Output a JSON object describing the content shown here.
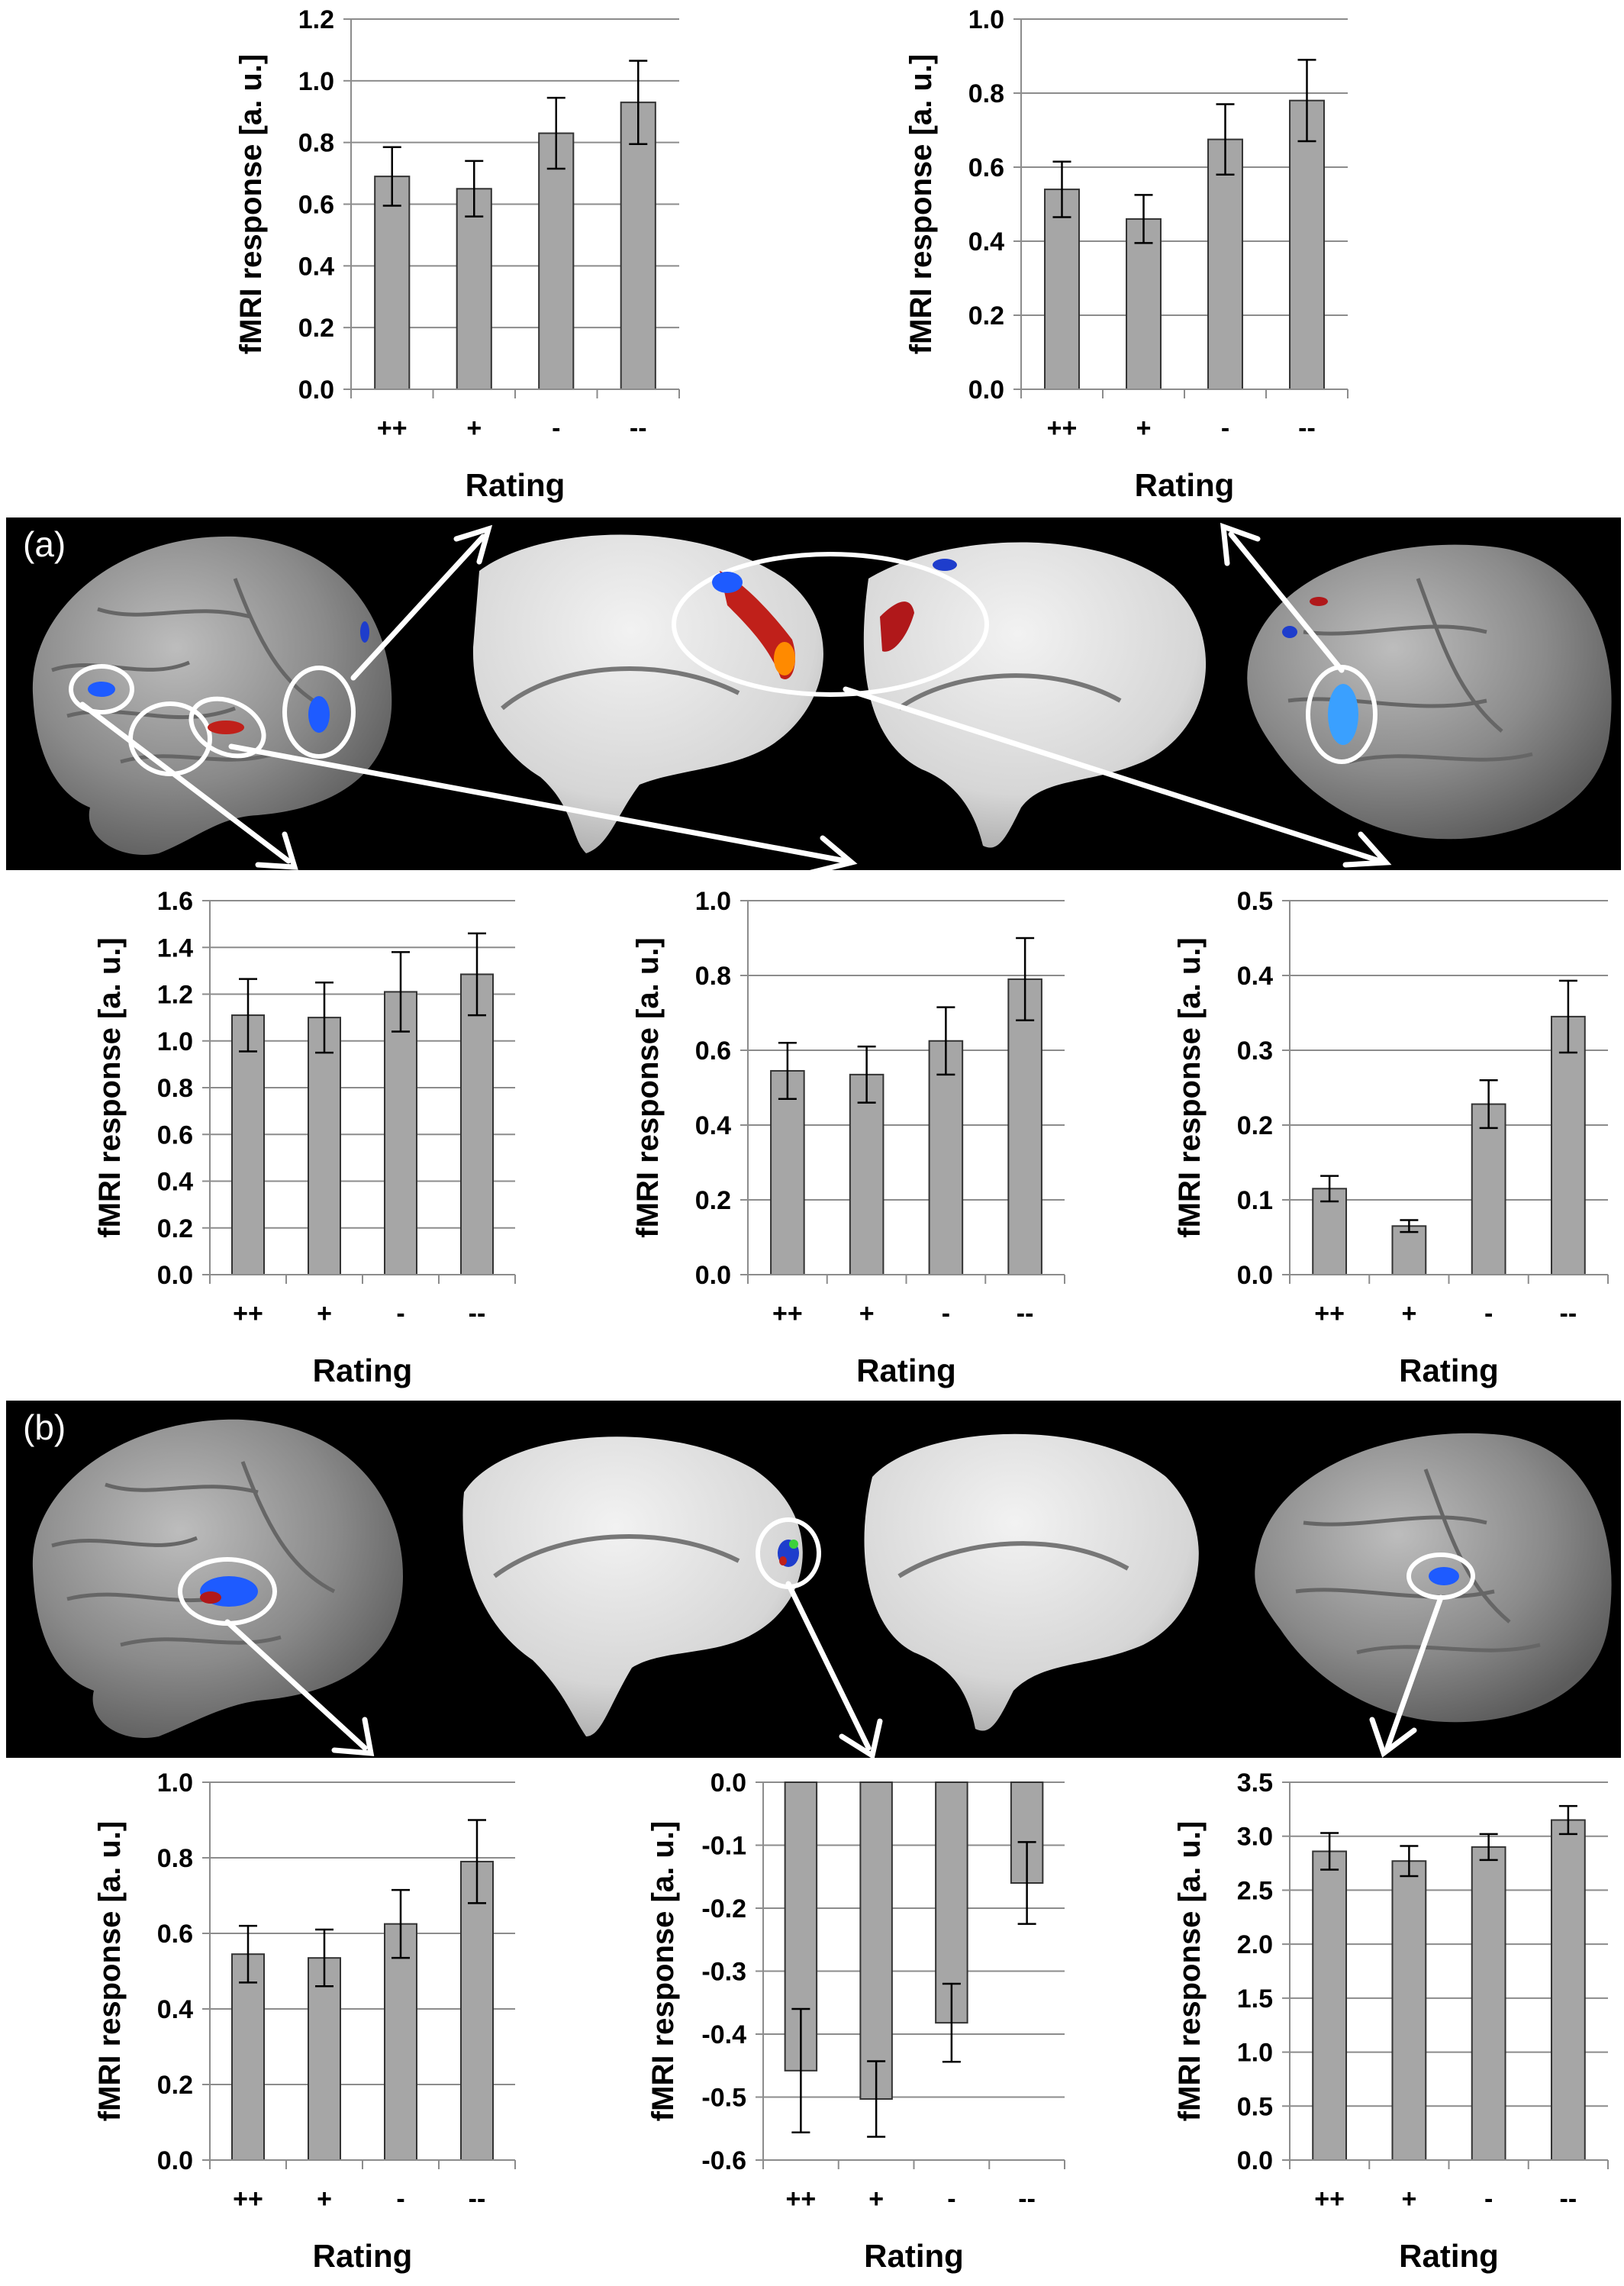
{
  "panels": [
    {
      "label": "(a)"
    },
    {
      "label": "(b)"
    }
  ],
  "common": {
    "ylabel": "fMRI response [a. u.]",
    "xlabel": "Rating",
    "bar_color": "#a6a6a6"
  },
  "chart_data": [
    {
      "type": "bar",
      "id": "a-top-left",
      "categories": [
        "++",
        "+",
        "-",
        "--"
      ],
      "values": [
        0.69,
        0.65,
        0.83,
        0.93
      ],
      "errors": [
        0.095,
        0.09,
        0.115,
        0.135
      ],
      "ylim": [
        0,
        1.2
      ],
      "ticks": [
        0.0,
        0.2,
        0.4,
        0.6,
        0.8,
        1.0,
        1.2
      ],
      "decimals": 1,
      "xlabel": "Rating",
      "ylabel": "fMRI response [a. u.]"
    },
    {
      "type": "bar",
      "id": "a-top-right",
      "categories": [
        "++",
        "+",
        "-",
        "--"
      ],
      "values": [
        0.54,
        0.46,
        0.675,
        0.78
      ],
      "errors": [
        0.075,
        0.065,
        0.095,
        0.11
      ],
      "ylim": [
        0,
        1.0
      ],
      "ticks": [
        0.0,
        0.2,
        0.4,
        0.6,
        0.8,
        1.0
      ],
      "decimals": 1,
      "xlabel": "Rating",
      "ylabel": "fMRI response [a. u.]"
    },
    {
      "type": "bar",
      "id": "a-bottom-left",
      "categories": [
        "++",
        "+",
        "-",
        "--"
      ],
      "values": [
        1.11,
        1.1,
        1.21,
        1.285
      ],
      "errors": [
        0.155,
        0.15,
        0.17,
        0.175
      ],
      "ylim": [
        0,
        1.6
      ],
      "ticks": [
        0.0,
        0.2,
        0.4,
        0.6,
        0.8,
        1.0,
        1.2,
        1.4,
        1.6
      ],
      "decimals": 1,
      "xlabel": "Rating",
      "ylabel": "fMRI response [a. u.]"
    },
    {
      "type": "bar",
      "id": "a-bottom-middle",
      "categories": [
        "++",
        "+",
        "-",
        "--"
      ],
      "values": [
        0.545,
        0.535,
        0.625,
        0.79
      ],
      "errors": [
        0.075,
        0.075,
        0.09,
        0.11
      ],
      "ylim": [
        0,
        1.0
      ],
      "ticks": [
        0.0,
        0.2,
        0.4,
        0.6,
        0.8,
        1.0
      ],
      "decimals": 1,
      "xlabel": "Rating",
      "ylabel": "fMRI response [a. u.]"
    },
    {
      "type": "bar",
      "id": "a-bottom-right",
      "categories": [
        "++",
        "+",
        "-",
        "--"
      ],
      "values": [
        0.115,
        0.065,
        0.228,
        0.345
      ],
      "errors": [
        0.017,
        0.008,
        0.032,
        0.048
      ],
      "ylim": [
        0,
        0.5
      ],
      "ticks": [
        0.0,
        0.1,
        0.2,
        0.3,
        0.4,
        0.5
      ],
      "decimals": 1,
      "xlabel": "Rating",
      "ylabel": "fMRI response [a. u.]"
    },
    {
      "type": "bar",
      "id": "b-left",
      "categories": [
        "++",
        "+",
        "-",
        "--"
      ],
      "values": [
        0.545,
        0.535,
        0.625,
        0.79
      ],
      "errors": [
        0.075,
        0.075,
        0.09,
        0.11
      ],
      "ylim": [
        0,
        1.0
      ],
      "ticks": [
        0.0,
        0.2,
        0.4,
        0.6,
        0.8,
        1.0
      ],
      "decimals": 1,
      "xlabel": "Rating",
      "ylabel": "fMRI response [a. u.]"
    },
    {
      "type": "bar",
      "id": "b-middle",
      "categories": [
        "++",
        "+",
        "-",
        "--"
      ],
      "values": [
        -0.458,
        -0.503,
        -0.382,
        -0.16
      ],
      "errors": [
        0.098,
        0.06,
        0.062,
        0.065
      ],
      "ylim": [
        -0.6,
        0.0
      ],
      "ticks": [
        0.0,
        -0.1,
        -0.2,
        -0.3,
        -0.4,
        -0.5,
        -0.6
      ],
      "decimals": 1,
      "xlabel": "Rating",
      "ylabel": "fMRI response [a. u.]"
    },
    {
      "type": "bar",
      "id": "b-right",
      "categories": [
        "++",
        "+",
        "-",
        "--"
      ],
      "values": [
        2.86,
        2.77,
        2.9,
        3.15
      ],
      "errors": [
        0.17,
        0.14,
        0.12,
        0.13
      ],
      "ylim": [
        0,
        3.5
      ],
      "ticks": [
        0.0,
        0.5,
        1.0,
        1.5,
        2.0,
        2.5,
        3.0,
        3.5
      ],
      "decimals": 1,
      "xlabel": "Rating",
      "ylabel": "fMRI response [a. u.]"
    }
  ]
}
